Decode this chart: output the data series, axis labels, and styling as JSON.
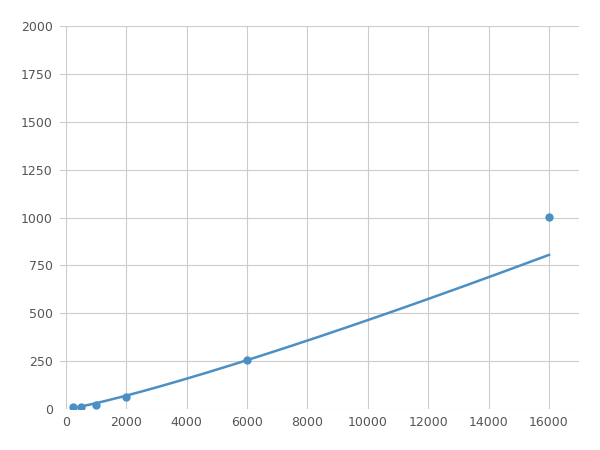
{
  "x": [
    250,
    500,
    1000,
    2000,
    6000,
    16000
  ],
  "y": [
    10,
    12,
    20,
    65,
    255,
    1005
  ],
  "line_color": "#4a90c4",
  "marker_color": "#4a90c4",
  "marker_size": 6,
  "marker_style": "o",
  "line_width": 1.8,
  "xlim": [
    -200,
    17000
  ],
  "ylim": [
    0,
    2000
  ],
  "xticks": [
    0,
    2000,
    4000,
    6000,
    8000,
    10000,
    12000,
    14000,
    16000
  ],
  "yticks": [
    0,
    250,
    500,
    750,
    1000,
    1250,
    1500,
    1750,
    2000
  ],
  "grid": true,
  "background_color": "#ffffff",
  "plot_background": "#ffffff",
  "figsize": [
    6.0,
    4.5
  ],
  "dpi": 100
}
